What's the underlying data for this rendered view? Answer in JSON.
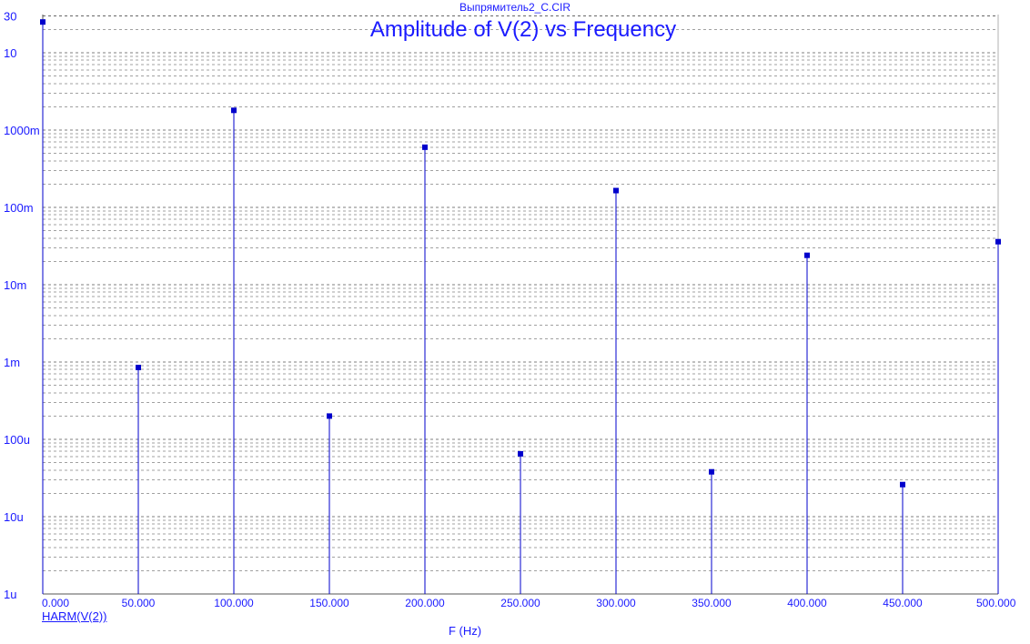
{
  "window_title": "Выпрямитель2_C.CIR",
  "chart_data": {
    "type": "bar",
    "title": "Amplitude of V(2) vs Frequency",
    "xlabel": "F (Hz)",
    "ylabel": "",
    "xlim": [
      0,
      500
    ],
    "ylim": [
      1e-06,
      30
    ],
    "yscale": "log",
    "grid": true,
    "legend": "bottom-left",
    "x_tick_labels": [
      "0.000",
      "50.000",
      "100.000",
      "150.000",
      "200.000",
      "250.000",
      "300.000",
      "350.000",
      "400.000",
      "450.000",
      "500.000"
    ],
    "y_tick_labels": [
      "1u",
      "10u",
      "100u",
      "1m",
      "10m",
      "100m",
      "1000m",
      "10",
      "30"
    ],
    "series": [
      {
        "name": "HARM(V(2))",
        "x": [
          0,
          50,
          100,
          150,
          200,
          250,
          300,
          350,
          400,
          450,
          500
        ],
        "y": [
          25,
          0.00085,
          1.8,
          0.0002,
          0.6,
          6.5e-05,
          0.165,
          3.8e-05,
          0.024,
          2.6e-05,
          0.036
        ]
      }
    ]
  },
  "colors": {
    "trace": "#0000cc",
    "text": "#1a1aff",
    "grid": "#555555",
    "axis": "#000000"
  }
}
